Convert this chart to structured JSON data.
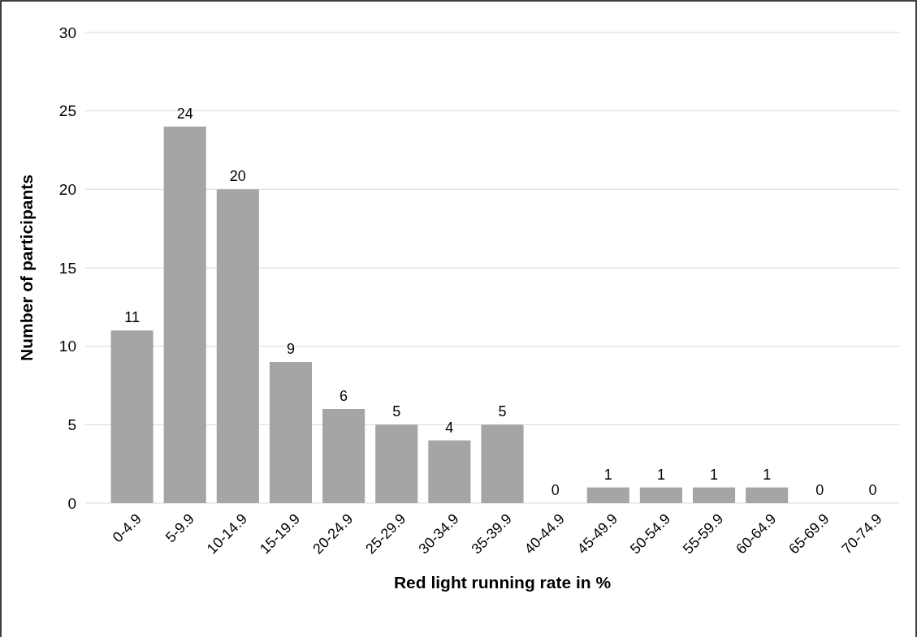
{
  "chart_data": {
    "type": "bar",
    "xlabel": "Red light running rate in %",
    "ylabel": "Number of participants",
    "categories": [
      "0-4.9",
      "5-9.9",
      "10-14.9",
      "15-19.9",
      "20-24.9",
      "25-29.9",
      "30-34.9",
      "35-39.9",
      "40-44.9",
      "45-49.9",
      "50-54.9",
      "55-59.9",
      "60-64.9",
      "65-69.9",
      "70-74.9"
    ],
    "values": [
      11,
      24,
      20,
      9,
      6,
      5,
      4,
      5,
      0,
      1,
      1,
      1,
      1,
      0,
      0
    ],
    "color": "#a5a5a5",
    "data_labels": true,
    "ylim": [
      0,
      30
    ],
    "yticks": [
      0,
      5,
      10,
      15,
      20,
      25,
      30
    ],
    "grid": "y"
  }
}
